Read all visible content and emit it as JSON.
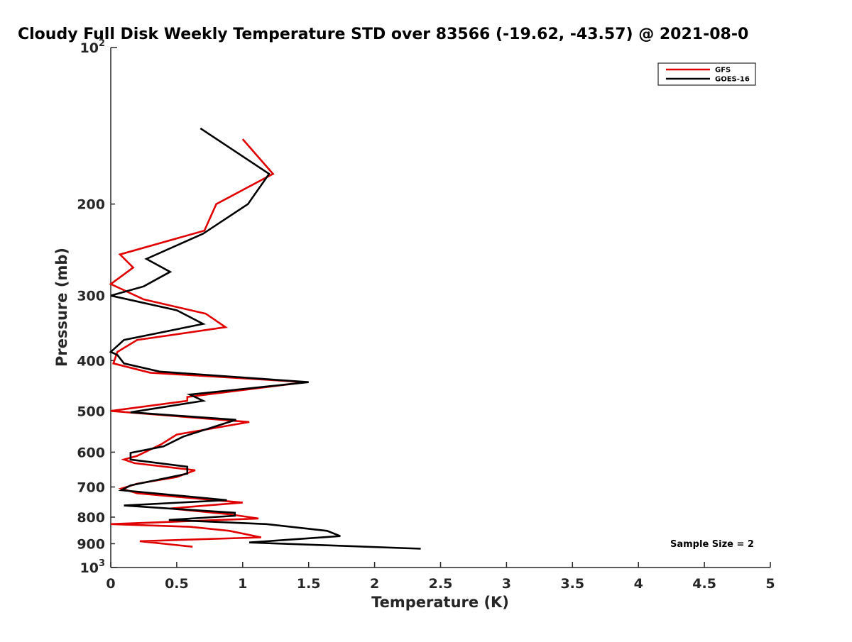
{
  "chart_data": {
    "type": "line",
    "title": "Cloudy Full Disk Weekly Temperature STD over 83566 (-19.62, -43.57) @ 2021-08-0",
    "xlabel": "Temperature (K)",
    "ylabel": "Pressure (mb)",
    "xlim": [
      0,
      5
    ],
    "ylim": [
      100,
      1000
    ],
    "y_scale": "log",
    "y_reversed": true,
    "x_ticks": [
      "0",
      "0.5",
      "1",
      "1.5",
      "2",
      "2.5",
      "3",
      "3.5",
      "4",
      "4.5",
      "5"
    ],
    "y_ticks": [
      {
        "value": 100,
        "base": "10",
        "exp": "2"
      },
      {
        "value": 200,
        "label": "200"
      },
      {
        "value": 300,
        "label": "300"
      },
      {
        "value": 400,
        "label": "400"
      },
      {
        "value": 500,
        "label": "500"
      },
      {
        "value": 600,
        "label": "600"
      },
      {
        "value": 700,
        "label": "700"
      },
      {
        "value": 800,
        "label": "800"
      },
      {
        "value": 900,
        "label": "900"
      },
      {
        "value": 1000,
        "base": "10",
        "exp": "3"
      }
    ],
    "legend_position": "top-right",
    "annotation": "Sample Size = 2",
    "series": [
      {
        "name": "GFS",
        "color": "#e00000",
        "points": [
          [
            1.0,
            150
          ],
          [
            1.23,
            175
          ],
          [
            0.8,
            200
          ],
          [
            0.71,
            225
          ],
          [
            0.07,
            250
          ],
          [
            0.17,
            265
          ],
          [
            0.0,
            285
          ],
          [
            0.25,
            305
          ],
          [
            0.72,
            325
          ],
          [
            0.87,
            345
          ],
          [
            0.2,
            365
          ],
          [
            0.05,
            385
          ],
          [
            0.02,
            405
          ],
          [
            0.3,
            422
          ],
          [
            1.48,
            440
          ],
          [
            0.58,
            470
          ],
          [
            0.58,
            478
          ],
          [
            0.0,
            500
          ],
          [
            1.05,
            525
          ],
          [
            0.5,
            555
          ],
          [
            0.38,
            580
          ],
          [
            0.2,
            610
          ],
          [
            0.1,
            620
          ],
          [
            0.18,
            630
          ],
          [
            0.64,
            650
          ],
          [
            0.5,
            670
          ],
          [
            0.2,
            690
          ],
          [
            0.08,
            705
          ],
          [
            0.2,
            720
          ],
          [
            1.0,
            750
          ],
          [
            0.45,
            770
          ],
          [
            0.9,
            790
          ],
          [
            1.12,
            805
          ],
          [
            0.0,
            825
          ],
          [
            0.6,
            835
          ],
          [
            0.9,
            850
          ],
          [
            1.14,
            875
          ],
          [
            0.22,
            890
          ],
          [
            0.62,
            912
          ]
        ]
      },
      {
        "name": "GOES-16",
        "color": "#000000",
        "points": [
          [
            0.68,
            143
          ],
          [
            1.2,
            175
          ],
          [
            1.04,
            200
          ],
          [
            0.7,
            228
          ],
          [
            0.27,
            255
          ],
          [
            0.45,
            270
          ],
          [
            0.25,
            288
          ],
          [
            0.0,
            300
          ],
          [
            0.5,
            320
          ],
          [
            0.7,
            340
          ],
          [
            0.1,
            365
          ],
          [
            0.0,
            385
          ],
          [
            0.05,
            390
          ],
          [
            0.1,
            405
          ],
          [
            0.37,
            420
          ],
          [
            1.5,
            440
          ],
          [
            0.6,
            465
          ],
          [
            0.7,
            478
          ],
          [
            0.15,
            503
          ],
          [
            0.95,
            520
          ],
          [
            0.55,
            560
          ],
          [
            0.4,
            585
          ],
          [
            0.15,
            602
          ],
          [
            0.15,
            620
          ],
          [
            0.58,
            640
          ],
          [
            0.58,
            660
          ],
          [
            0.15,
            695
          ],
          [
            0.08,
            710
          ],
          [
            0.88,
            742
          ],
          [
            0.1,
            760
          ],
          [
            0.94,
            785
          ],
          [
            0.94,
            795
          ],
          [
            0.44,
            810
          ],
          [
            1.18,
            825
          ],
          [
            1.64,
            850
          ],
          [
            1.74,
            870
          ],
          [
            1.05,
            895
          ],
          [
            2.35,
            920
          ]
        ]
      }
    ]
  }
}
